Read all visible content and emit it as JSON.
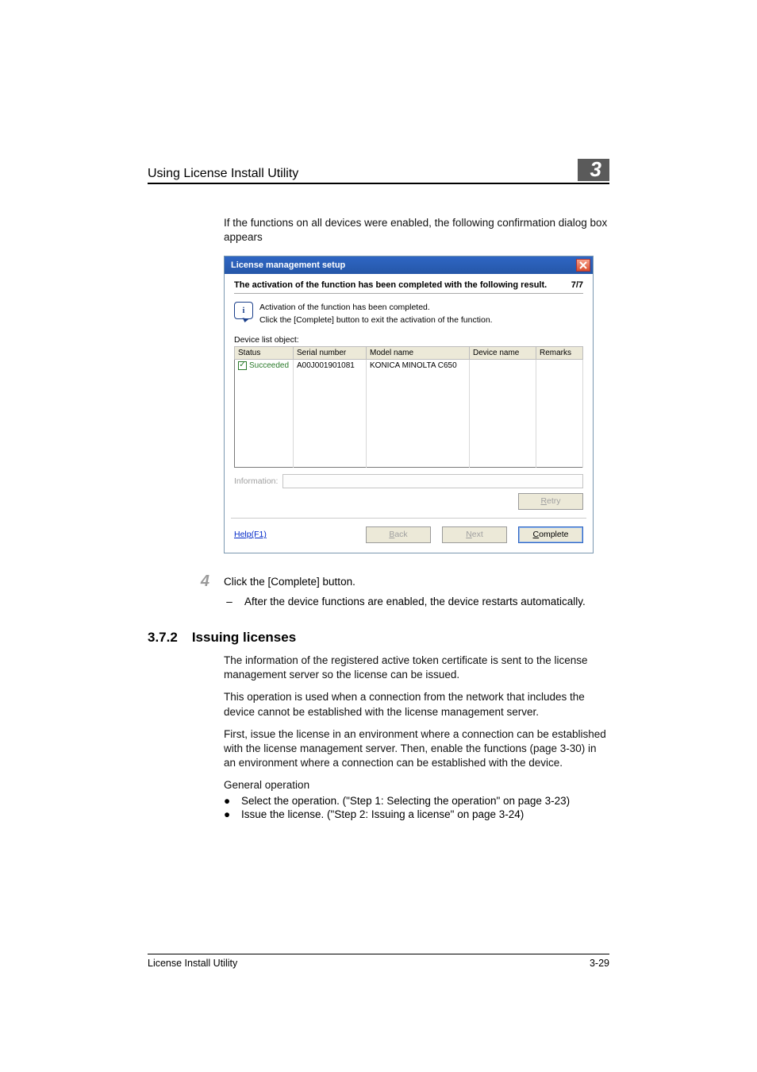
{
  "header": {
    "running_title": "Using License Install Utility",
    "chapter_number": "3"
  },
  "intro_para": "If the functions on all devices were enabled, the following confirmation dialog box appears",
  "dialog": {
    "title": "License management setup",
    "sub_heading": "The activation of the function has been completed with the following result.",
    "step_indicator": "7/7",
    "info_icon_glyph": "i",
    "info_line1": "Activation of the function has been completed.",
    "info_line2": "Click the [Complete] button to exit the activation of the function.",
    "device_list_label": "Device list object:",
    "table": {
      "columns": [
        "Status",
        "Serial number",
        "Model name",
        "Device name",
        "Remarks"
      ],
      "col_widths": [
        "74px",
        "92px",
        "130px",
        "84px",
        "auto"
      ],
      "rows": [
        {
          "status_label": "Succeeded",
          "serial": "A00J001901081",
          "model": "KONICA MINOLTA C650",
          "device": "",
          "remarks": "",
          "succeeded": true
        }
      ],
      "empty_row_count": 8
    },
    "information_label": "Information:",
    "buttons": {
      "retry": "Retry",
      "help": "Help(F1)",
      "back": "Back",
      "next": "Next",
      "complete": "Complete"
    },
    "colors": {
      "titlebar_grad_top": "#2f66c4",
      "titlebar_grad_bottom": "#2557a8",
      "close_grad_top": "#f7a08a",
      "close_grad_bottom": "#d94f2f",
      "header_cell_bg": "#ece9d8",
      "disabled_text": "#a0a0a0",
      "enabled_border": "#2f66c4"
    }
  },
  "step4": {
    "number": "4",
    "text": "Click the [Complete] button.",
    "sub_dash": "–",
    "sub_text": "After the device functions are enabled, the device restarts automatically."
  },
  "section": {
    "number": "3.7.2",
    "title": "Issuing licenses",
    "p1": "The information of the registered active token certificate is sent to the license management server so the license can be issued.",
    "p2": "This operation is used when a connection from the network that includes the device cannot be established with the license management server.",
    "p3": "First, issue the license in an environment where a connection can be established with the license management server. Then, enable the functions (page 3-30) in an environment where a connection can be established with the device.",
    "general_label": "General operation",
    "bullets": [
      "Select the operation. (\"Step 1: Selecting the operation\" on page 3-23)",
      "Issue the license. (\"Step 2: Issuing a license\" on page 3-24)"
    ]
  },
  "footer": {
    "doc_title": "License Install Utility",
    "page_number": "3-29"
  }
}
